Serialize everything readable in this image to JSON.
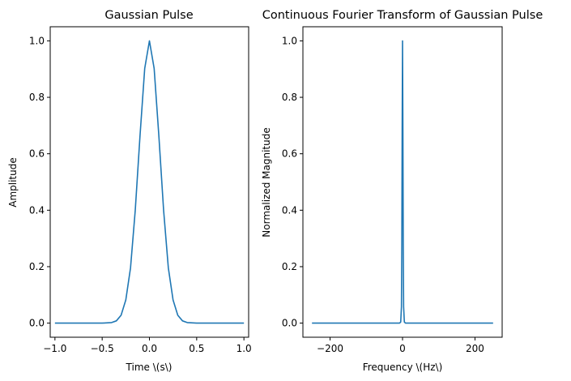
{
  "chart_data": [
    {
      "type": "line",
      "title": "Gaussian Pulse",
      "xlabel": "Time \\(s\\)",
      "ylabel": "Amplitude",
      "xlim": [
        -1.05,
        1.05
      ],
      "ylim": [
        -0.05,
        1.05
      ],
      "xticks": [
        -1.0,
        -0.5,
        0.0,
        0.5,
        1.0
      ],
      "xtick_labels": [
        "−1.0",
        "−0.5",
        "0.0",
        "0.5",
        "1.0"
      ],
      "yticks": [
        0.0,
        0.2,
        0.4,
        0.6,
        0.8,
        1.0
      ],
      "ytick_labels": [
        "0.0",
        "0.2",
        "0.4",
        "0.6",
        "0.8",
        "1.0"
      ],
      "grid": false,
      "legend": null,
      "series": [
        {
          "color": "#1f77b4",
          "x": [
            -1.0,
            -0.5,
            -0.4,
            -0.35,
            -0.3,
            -0.25,
            -0.2,
            -0.15,
            -0.1,
            -0.05,
            0.0,
            0.05,
            0.1,
            0.15,
            0.2,
            0.25,
            0.3,
            0.35,
            0.4,
            0.5,
            1.0
          ],
          "y": [
            0.0,
            0.0,
            0.002,
            0.008,
            0.028,
            0.082,
            0.196,
            0.4,
            0.662,
            0.902,
            1.0,
            0.902,
            0.662,
            0.4,
            0.196,
            0.082,
            0.028,
            0.008,
            0.002,
            0.0,
            0.0
          ]
        }
      ]
    },
    {
      "type": "line",
      "title": "Continuous Fourier Transform of Gaussian Pulse",
      "xlabel": "Frequency \\(Hz\\)",
      "ylabel": "Normalized Magnitude",
      "xlim": [
        -275,
        275
      ],
      "ylim": [
        -0.05,
        1.05
      ],
      "xticks": [
        -200,
        0,
        200
      ],
      "xtick_labels": [
        "−200",
        "0",
        "200"
      ],
      "yticks": [
        0.0,
        0.2,
        0.4,
        0.6,
        0.8,
        1.0
      ],
      "ytick_labels": [
        "0.0",
        "0.2",
        "0.4",
        "0.6",
        "0.8",
        "1.0"
      ],
      "grid": false,
      "legend": null,
      "series": [
        {
          "color": "#1f77b4",
          "x": [
            -250,
            -8,
            -5,
            -3,
            -2,
            -1,
            0,
            1,
            2,
            3,
            5,
            8,
            250
          ],
          "y": [
            0.0,
            0.0,
            0.004,
            0.058,
            0.282,
            0.685,
            1.0,
            0.685,
            0.282,
            0.058,
            0.004,
            0.0,
            0.0
          ]
        }
      ]
    }
  ]
}
